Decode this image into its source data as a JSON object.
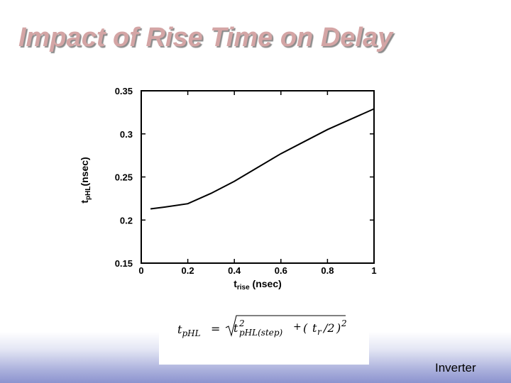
{
  "slide": {
    "title": "Impact of Rise Time on Delay",
    "footer": "Inverter"
  },
  "formula": {
    "lhs": "t",
    "lhs_sub": "pHL",
    "equals": "=",
    "term1": "t",
    "term1_sup": "2",
    "term1_sub": "pHL(step)",
    "plus": "+",
    "term2_open": "(",
    "term2_t": "t",
    "term2_sub": "r",
    "term2_div": "/2",
    "term2_close": ")",
    "term2_sup": "2"
  },
  "chart_data": {
    "type": "line",
    "xlabel_main": "t",
    "xlabel_sub": "rise",
    "xlabel_unit": " (nsec)",
    "ylabel_main": "t",
    "ylabel_sub": "pHL",
    "ylabel_unit": "(nsec)",
    "xlim": [
      0,
      1
    ],
    "ylim": [
      0.15,
      0.35
    ],
    "xticks": [
      "0",
      "0.2",
      "0.4",
      "0.6",
      "0.8",
      "1"
    ],
    "yticks": [
      "0.15",
      "0.2",
      "0.25",
      "0.3",
      "0.35"
    ],
    "grid": false,
    "series": [
      {
        "x": [
          0.04,
          0.1,
          0.2,
          0.3,
          0.4,
          0.5,
          0.6,
          0.7,
          0.8,
          0.9,
          1.0
        ],
        "y": [
          0.213,
          0.215,
          0.219,
          0.231,
          0.245,
          0.261,
          0.277,
          0.291,
          0.305,
          0.317,
          0.329
        ]
      }
    ]
  },
  "colors": {
    "title": "#d4a5a5",
    "title_shadow": "#8c8c8c",
    "line": "#000000"
  }
}
